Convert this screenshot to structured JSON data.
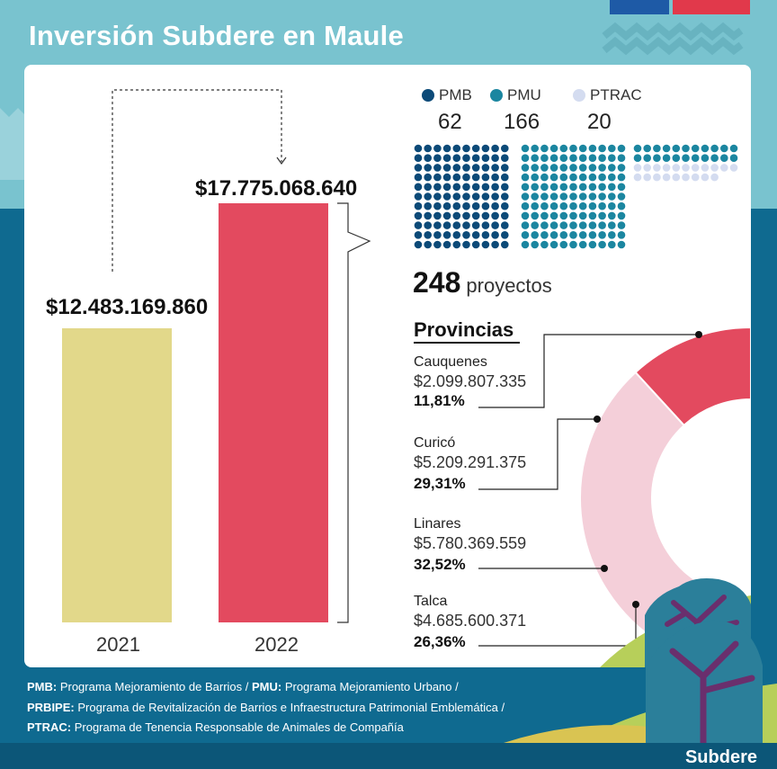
{
  "title": "Inversión Subdere en Maule",
  "colors": {
    "top_bg": "#79c3cf",
    "bottom_bg": "#0f6a90",
    "bar_2021": "#e2d88a",
    "bar_2022": "#e34a5f",
    "pmb": "#0c4a78",
    "pmu": "#1b86a0",
    "ptrac": "#d4dcf0"
  },
  "chart_data": [
    {
      "type": "bar",
      "categories": [
        "2021",
        "2022"
      ],
      "values": [
        12483169860,
        17775068640
      ],
      "value_labels": [
        "$12.483.169.860",
        "$17.775.068.640"
      ],
      "ylim": [
        0,
        17775068640
      ]
    },
    {
      "type": "waffle",
      "series": [
        {
          "name": "PMB",
          "value": 62,
          "label": "62"
        },
        {
          "name": "PMU",
          "value": 166,
          "label": "166"
        },
        {
          "name": "PTRAC",
          "value": 20,
          "label": "20"
        }
      ],
      "total": "248",
      "total_unit": "proyectos"
    },
    {
      "type": "pie",
      "title": "Provincias",
      "categories": [
        "Cauquenes",
        "Curicó",
        "Linares",
        "Talca"
      ],
      "values": [
        2099807335,
        5209291375,
        5780369559,
        4685600371
      ],
      "amount_labels": [
        "$2.099.807.335",
        "$5.209.291.375",
        "$5.780.369.559",
        "$4.685.600.371"
      ],
      "percent_labels": [
        "11,81%",
        "29,31%",
        "32,52%",
        "26,36%"
      ],
      "percents": [
        11.81,
        29.31,
        32.52,
        26.36
      ]
    }
  ],
  "footer": [
    {
      "abbr": "PMB:",
      "text": " Programa Mejoramiento de Barrios / ",
      "abbr2": "PMU:",
      "text2": " Programa Mejoramiento Urbano /"
    },
    {
      "abbr": "PRBIPE:",
      "text": " Programa de Revitalización de Barrios e Infraestructura Patrimonial Emblemática /"
    },
    {
      "abbr": "PTRAC:",
      "text": " Programa de Tenencia Responsable de Animales de Compañía"
    }
  ],
  "brand": "Subdere"
}
